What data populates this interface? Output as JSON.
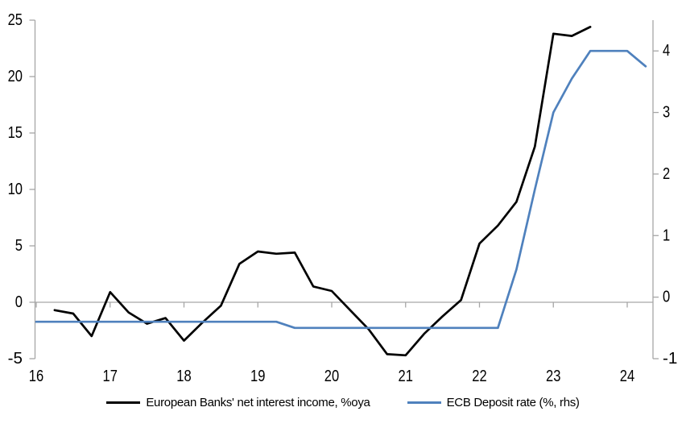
{
  "chart_data": {
    "type": "line",
    "title": "",
    "x_axis": {
      "tick_labels": [
        "16",
        "17",
        "18",
        "19",
        "20",
        "21",
        "22",
        "23",
        "24"
      ],
      "tick_values": [
        16,
        17,
        18,
        19,
        20,
        21,
        22,
        23,
        24
      ],
      "range": [
        16,
        24.35
      ]
    },
    "left_axis": {
      "tick_labels": [
        "25",
        "20",
        "15",
        "10",
        "5",
        "0",
        "-5"
      ],
      "tick_values": [
        25,
        20,
        15,
        10,
        5,
        0,
        -5
      ],
      "range": [
        -5,
        25
      ]
    },
    "right_axis": {
      "tick_labels": [
        "4",
        "3",
        "2",
        "1",
        "0",
        "-1"
      ],
      "tick_values": [
        4,
        3,
        2,
        1,
        0,
        -1
      ],
      "range": [
        -1,
        4.5
      ]
    },
    "grid": "zero-line-only",
    "legend_position": "bottom-center",
    "colors": {
      "axis": "#a6a6a6",
      "tick_label": "#000000",
      "black_series": "#000000",
      "blue_series": "#4f81bd"
    },
    "series": [
      {
        "name": "European Banks' net interest income, %oya",
        "axis": "left",
        "color": "#000000",
        "points": [
          [
            16.25,
            -0.7
          ],
          [
            16.5,
            -1.0
          ],
          [
            16.75,
            -3.0
          ],
          [
            17.0,
            0.9
          ],
          [
            17.25,
            -0.9
          ],
          [
            17.5,
            -1.9
          ],
          [
            17.75,
            -1.4
          ],
          [
            18.0,
            -3.4
          ],
          [
            18.25,
            -1.8
          ],
          [
            18.5,
            -0.3
          ],
          [
            18.75,
            3.4
          ],
          [
            19.0,
            4.5
          ],
          [
            19.25,
            4.3
          ],
          [
            19.5,
            4.4
          ],
          [
            19.75,
            1.4
          ],
          [
            20.0,
            1.0
          ],
          [
            20.25,
            -0.7
          ],
          [
            20.5,
            -2.4
          ],
          [
            20.75,
            -4.6
          ],
          [
            21.0,
            -4.7
          ],
          [
            21.25,
            -2.8
          ],
          [
            21.5,
            -1.25
          ],
          [
            21.75,
            0.2
          ],
          [
            22.0,
            5.2
          ],
          [
            22.25,
            6.8
          ],
          [
            22.5,
            8.9
          ],
          [
            22.75,
            13.8
          ],
          [
            23.0,
            23.8
          ],
          [
            23.25,
            23.6
          ],
          [
            23.5,
            24.4
          ]
        ]
      },
      {
        "name": "ECB Deposit rate (%, rhs)",
        "axis": "right",
        "color": "#4f81bd",
        "points": [
          [
            16.0,
            -0.4
          ],
          [
            19.25,
            -0.4
          ],
          [
            19.5,
            -0.5
          ],
          [
            22.25,
            -0.5
          ],
          [
            22.5,
            0.45
          ],
          [
            22.75,
            1.75
          ],
          [
            23.0,
            3.0
          ],
          [
            23.25,
            3.55
          ],
          [
            23.5,
            4.0
          ],
          [
            24.0,
            4.0
          ],
          [
            24.25,
            3.75
          ]
        ]
      }
    ]
  }
}
